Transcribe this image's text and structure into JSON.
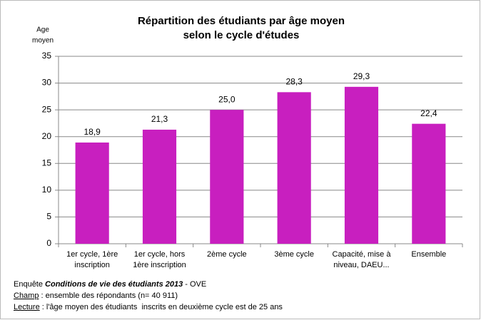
{
  "chart_data": {
    "type": "bar",
    "title": [
      "Répartition des étudiants  par âge moyen",
      "selon le cycle d'études"
    ],
    "y_label": [
      "Age",
      "moyen"
    ],
    "categories": [
      [
        "1er cycle, 1ère",
        "inscription"
      ],
      [
        "1er cycle, hors",
        "1ère inscription"
      ],
      [
        "2ème cycle"
      ],
      [
        "3ème cycle"
      ],
      [
        "Capacité, mise à",
        "niveau, DAEU..."
      ],
      [
        "Ensemble"
      ]
    ],
    "values": [
      18.9,
      21.3,
      25.0,
      28.3,
      29.3,
      22.4
    ],
    "value_labels": [
      "18,9",
      "21,3",
      "25,0",
      "28,3",
      "29,3",
      "22,4"
    ],
    "color": "#c81fbf",
    "ylim": [
      0,
      35
    ],
    "yticks": [
      0,
      5,
      10,
      15,
      20,
      25,
      30,
      35
    ],
    "grid": true
  },
  "notes": {
    "survey": {
      "prefix": "Enquête ",
      "emphasis": "Conditions de vie des étudiants 2013",
      "suffix": " - OVE"
    },
    "scope": {
      "label": "Champ",
      "text": " : ensemble des répondants (n= 40 911)"
    },
    "reading": {
      "label": "Lecture",
      "text": " : l'âge moyen des étudiants  inscrits en deuxième cycle est de 25 ans"
    }
  }
}
